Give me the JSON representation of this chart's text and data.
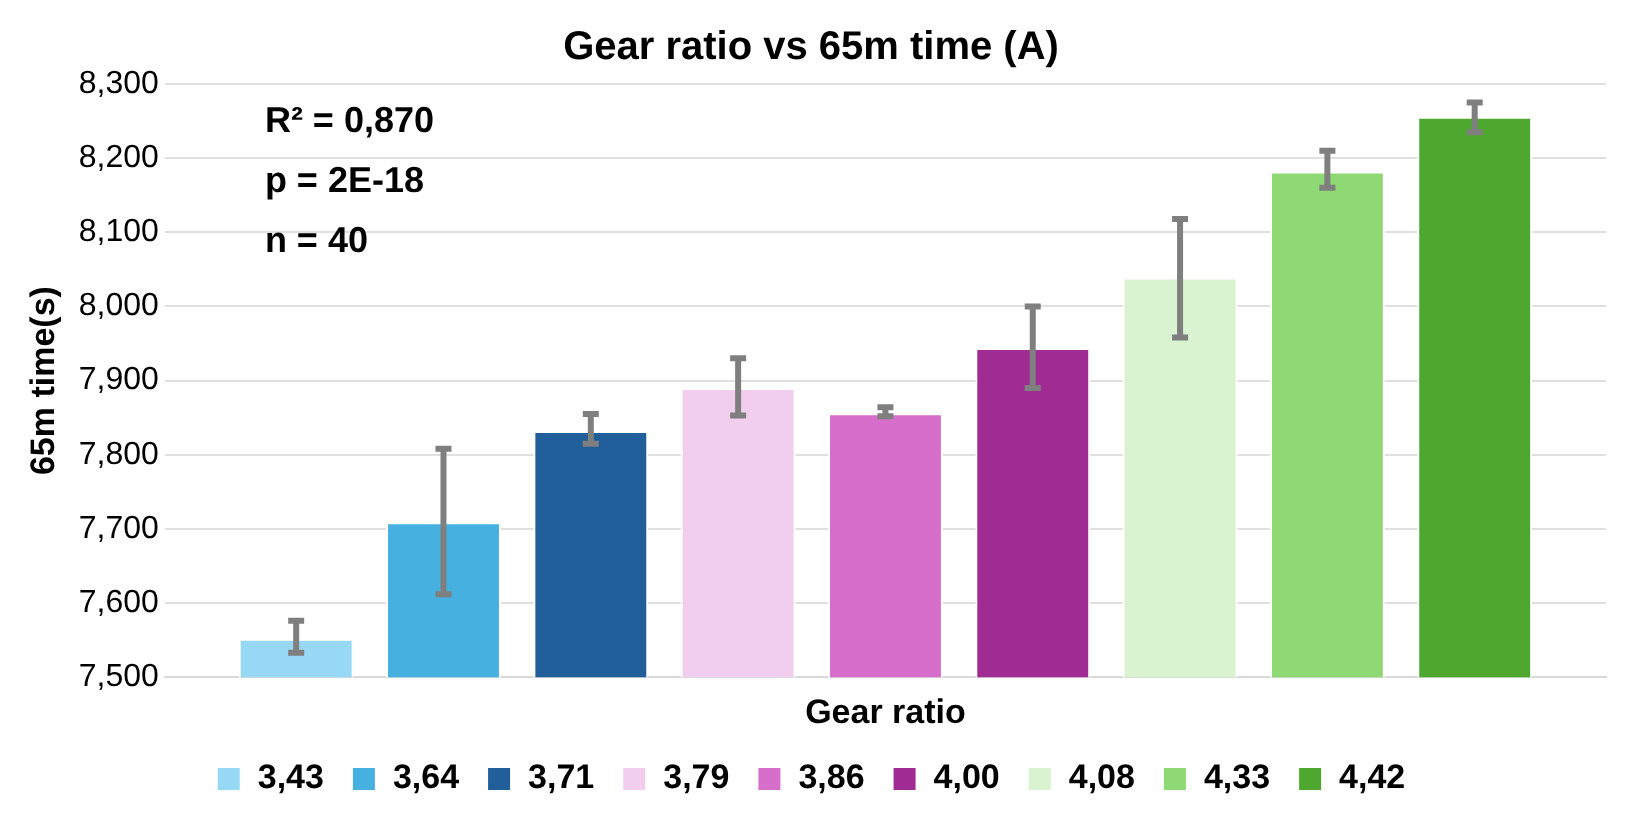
{
  "chart_data": {
    "type": "bar",
    "title": "Gear ratio vs 65m time (A)",
    "xlabel": "Gear ratio",
    "ylabel": "65m time(s)",
    "categories": [
      null
    ],
    "series": [
      {
        "name": "3,43",
        "color": "#97d9f5",
        "values": [
          7.552
        ],
        "errors": [
          [
            7.533,
            7.576
          ]
        ]
      },
      {
        "name": "3,64",
        "color": "#46b1e1",
        "values": [
          7.709
        ],
        "errors": [
          [
            7.612,
            7.808
          ]
        ]
      },
      {
        "name": "3,71",
        "color": "#215f9a",
        "values": [
          7.832
        ],
        "errors": [
          [
            7.815,
            7.855
          ]
        ]
      },
      {
        "name": "3,79",
        "color": "#f1ceee",
        "values": [
          7.89
        ],
        "errors": [
          [
            7.853,
            7.93
          ]
        ]
      },
      {
        "name": "3,86",
        "color": "#d86ecc",
        "values": [
          7.856
        ],
        "errors": [
          [
            7.852,
            7.864
          ]
        ]
      },
      {
        "name": "4,00",
        "color": "#a02b93",
        "values": [
          7.944
        ],
        "errors": [
          [
            7.89,
            8.0
          ]
        ]
      },
      {
        "name": "4,08",
        "color": "#d9f2d0",
        "values": [
          8.039
        ],
        "errors": [
          [
            7.958,
            8.118
          ]
        ]
      },
      {
        "name": "4,33",
        "color": "#8ed973",
        "values": [
          8.182
        ],
        "errors": [
          [
            8.16,
            8.21
          ]
        ]
      },
      {
        "name": "4,42",
        "color": "#4ea72e",
        "values": [
          8.256
        ],
        "errors": [
          [
            8.235,
            8.275
          ]
        ]
      }
    ],
    "ylim": [
      7.5,
      8.3
    ],
    "yticks": [
      {
        "value": 7.5,
        "label": "7,500"
      },
      {
        "value": 7.6,
        "label": "7,600"
      },
      {
        "value": 7.7,
        "label": "7,700"
      },
      {
        "value": 7.8,
        "label": "7,800"
      },
      {
        "value": 7.9,
        "label": "7,900"
      },
      {
        "value": 8.0,
        "label": "8,000"
      },
      {
        "value": 8.1,
        "label": "8,100"
      },
      {
        "value": 8.2,
        "label": "8,200"
      },
      {
        "value": 8.3,
        "label": "8,300"
      }
    ],
    "grid": "y",
    "legend": "bottom",
    "annotations": [
      "R² = 0,870",
      "p = 2E-18",
      "n = 40"
    ]
  }
}
